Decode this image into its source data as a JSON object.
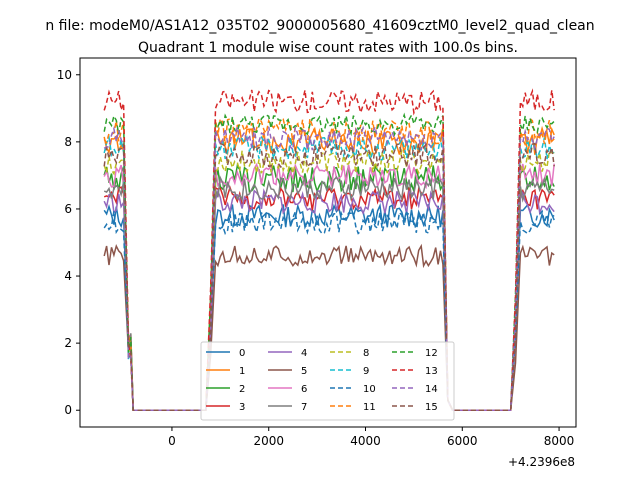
{
  "figure": {
    "suptitle": "n file: modeM0/AS1A12_035T02_9000005680_41609cztM0_level2_quad_clean",
    "title": "Quadrant 1 module wise count rates with 100.0s bins.",
    "offset_label": "+4.2396e8"
  },
  "chart_data": {
    "type": "line",
    "xlim": [
      -1900,
      8350
    ],
    "ylim": [
      -0.5,
      10.5
    ],
    "x_ticks": [
      0,
      2000,
      4000,
      6000,
      8000
    ],
    "x_tick_labels": [
      "0",
      "2000",
      "4000",
      "6000",
      "8000"
    ],
    "y_ticks": [
      0,
      2,
      4,
      6,
      8,
      10
    ],
    "y_tick_labels": [
      "0",
      "2",
      "4",
      "6",
      "8",
      "10"
    ],
    "x_offset": 423960000,
    "legend": {
      "placement": "lower-center",
      "columns": 4
    },
    "colors": [
      "#1f77b4",
      "#ff7f0e",
      "#2ca02c",
      "#d62728",
      "#9467bd",
      "#8c564b",
      "#e377c2",
      "#7f7f7f",
      "#bcbd22",
      "#17becf"
    ],
    "segments": [
      {
        "start": -1400,
        "end": -1000,
        "kind": "on"
      },
      {
        "start": -900,
        "end": -850,
        "kind": "fall"
      },
      {
        "start": -800,
        "end": 700,
        "kind": "off"
      },
      {
        "start": 800,
        "end": 800,
        "kind": "rise"
      },
      {
        "start": 900,
        "end": 5600,
        "kind": "on"
      },
      {
        "start": 5700,
        "end": 5700,
        "kind": "fall"
      },
      {
        "start": 5800,
        "end": 7000,
        "kind": "off"
      },
      {
        "start": 7100,
        "end": 7100,
        "kind": "rise"
      },
      {
        "start": 7200,
        "end": 7900,
        "kind": "on"
      }
    ],
    "series": [
      {
        "name": "0",
        "level": 5.8,
        "noise": 0.35,
        "dashed": false
      },
      {
        "name": "1",
        "level": 8.0,
        "noise": 0.4,
        "dashed": false
      },
      {
        "name": "2",
        "level": 6.9,
        "noise": 0.4,
        "dashed": false
      },
      {
        "name": "3",
        "level": 6.3,
        "noise": 0.35,
        "dashed": false
      },
      {
        "name": "4",
        "level": 6.2,
        "noise": 0.35,
        "dashed": false
      },
      {
        "name": "5",
        "level": 4.6,
        "noise": 0.3,
        "dashed": false
      },
      {
        "name": "6",
        "level": 7.0,
        "noise": 0.35,
        "dashed": false
      },
      {
        "name": "7",
        "level": 6.6,
        "noise": 0.35,
        "dashed": false
      },
      {
        "name": "8",
        "level": 7.4,
        "noise": 0.35,
        "dashed": true
      },
      {
        "name": "9",
        "level": 7.8,
        "noise": 0.35,
        "dashed": true
      },
      {
        "name": "10",
        "level": 5.6,
        "noise": 0.35,
        "dashed": true
      },
      {
        "name": "11",
        "level": 8.3,
        "noise": 0.4,
        "dashed": true
      },
      {
        "name": "12",
        "level": 8.5,
        "noise": 0.3,
        "dashed": true
      },
      {
        "name": "13",
        "level": 9.2,
        "noise": 0.35,
        "dashed": true
      },
      {
        "name": "14",
        "level": 8.1,
        "noise": 0.35,
        "dashed": true
      },
      {
        "name": "15",
        "level": 7.6,
        "noise": 0.35,
        "dashed": true
      }
    ]
  }
}
